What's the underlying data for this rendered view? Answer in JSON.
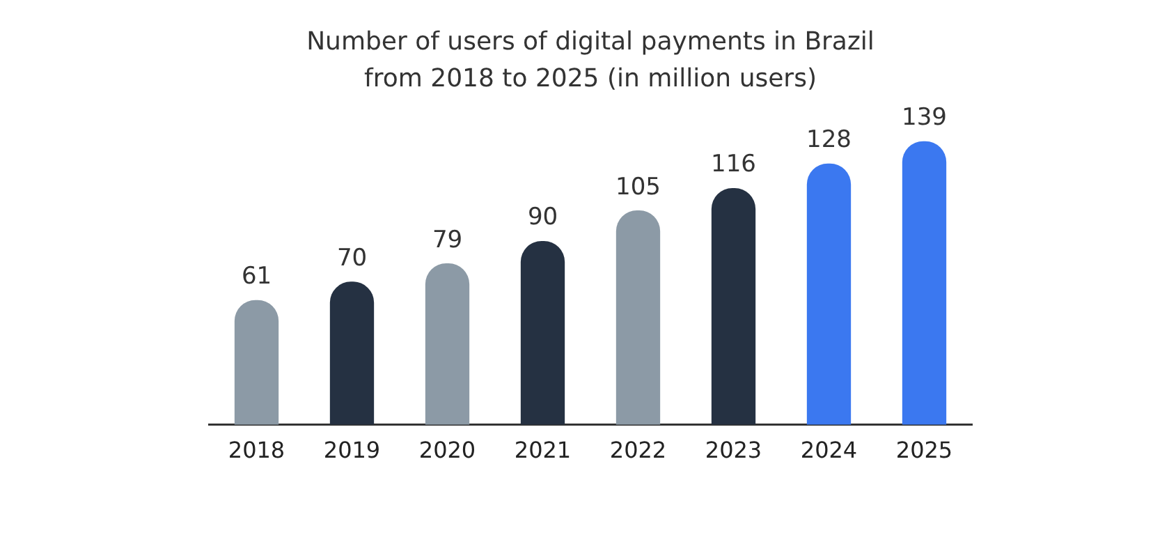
{
  "chart_data": {
    "type": "bar",
    "title": "Number of users of digital payments in Brazil\nfrom 2018 to 2025 (in million users)",
    "categories": [
      "2018",
      "2019",
      "2020",
      "2021",
      "2022",
      "2023",
      "2024",
      "2025"
    ],
    "values": [
      61,
      70,
      79,
      90,
      105,
      116,
      128,
      139
    ],
    "colors": [
      "#8c9aa6",
      "#253142",
      "#8c9aa6",
      "#253142",
      "#8c9aa6",
      "#253142",
      "#3b78f0",
      "#3b78f0"
    ],
    "data_labels": true,
    "grid": false,
    "legend": false
  }
}
